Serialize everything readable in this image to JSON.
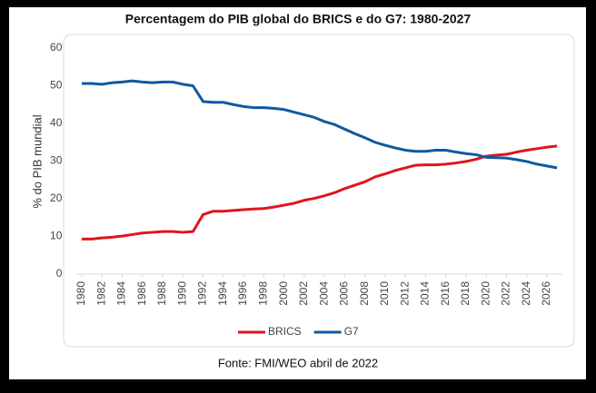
{
  "chart_data": {
    "type": "line",
    "title": "Percentagem do PIB global do BRICS e do G7: 1980-2027",
    "y_label": "% do PIB mundial",
    "source": "Fonte: FMI/WEO abril de 2022",
    "x": [
      1980,
      1981,
      1982,
      1983,
      1984,
      1985,
      1986,
      1987,
      1988,
      1989,
      1990,
      1991,
      1992,
      1993,
      1994,
      1995,
      1996,
      1997,
      1998,
      1999,
      2000,
      2001,
      2002,
      2003,
      2004,
      2005,
      2006,
      2007,
      2008,
      2009,
      2010,
      2011,
      2012,
      2013,
      2014,
      2015,
      2016,
      2017,
      2018,
      2019,
      2020,
      2021,
      2022,
      2023,
      2024,
      2025,
      2026,
      2027
    ],
    "series": [
      {
        "name": "BRICS",
        "color": "#e0151b",
        "values": [
          9.3,
          9.3,
          9.6,
          9.8,
          10.1,
          10.5,
          10.9,
          11.1,
          11.3,
          11.3,
          11.1,
          11.3,
          15.8,
          16.7,
          16.7,
          16.9,
          17.1,
          17.3,
          17.4,
          17.8,
          18.3,
          18.8,
          19.6,
          20.1,
          20.8,
          21.6,
          22.7,
          23.6,
          24.5,
          25.8,
          26.6,
          27.5,
          28.2,
          28.9,
          29.0,
          29.0,
          29.2,
          29.5,
          29.9,
          30.5,
          31.3,
          31.6,
          31.8,
          32.4,
          32.9,
          33.3,
          33.7,
          34.0
        ]
      },
      {
        "name": "G7",
        "color": "#0f5aa0",
        "values": [
          50.6,
          50.6,
          50.4,
          50.8,
          51.0,
          51.3,
          51.0,
          50.8,
          51.0,
          51.0,
          50.4,
          50.0,
          45.8,
          45.6,
          45.6,
          45.0,
          44.5,
          44.2,
          44.2,
          44.0,
          43.7,
          43.0,
          42.3,
          41.6,
          40.5,
          39.7,
          38.5,
          37.3,
          36.2,
          35.0,
          34.2,
          33.5,
          32.9,
          32.6,
          32.6,
          32.9,
          32.9,
          32.4,
          32.0,
          31.7,
          31.0,
          30.9,
          30.8,
          30.4,
          29.9,
          29.2,
          28.7,
          28.2
        ]
      }
    ],
    "xlim": [
      1979.5,
      2027.5
    ],
    "xticks": [
      1980,
      1982,
      1984,
      1986,
      1988,
      1990,
      1992,
      1994,
      1996,
      1998,
      2000,
      2002,
      2004,
      2006,
      2008,
      2010,
      2012,
      2014,
      2016,
      2018,
      2020,
      2022,
      2024,
      2026
    ],
    "ylim": [
      0,
      60
    ],
    "yticks": [
      0,
      10,
      20,
      30,
      40,
      50,
      60
    ],
    "grid": false,
    "legend": "bottom"
  }
}
